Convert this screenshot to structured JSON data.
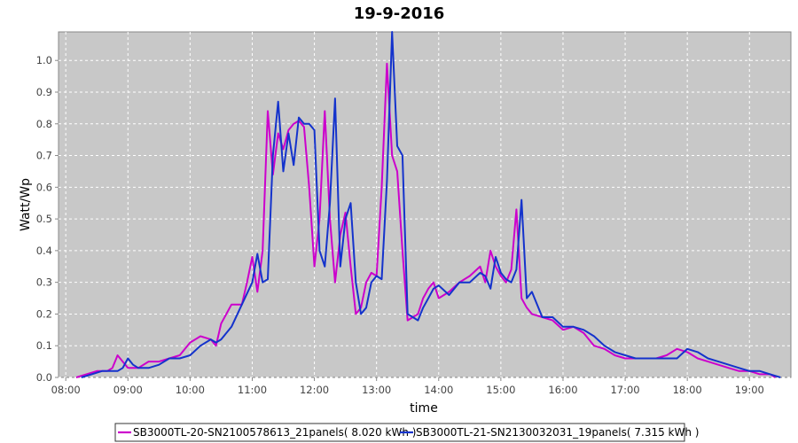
{
  "chart_data": {
    "type": "line",
    "title": "19-9-2016",
    "xlabel": "time",
    "ylabel": "Watt/Wp",
    "x_ticks": [
      "08:00",
      "09:00",
      "10:00",
      "11:00",
      "12:00",
      "13:00",
      "14:00",
      "15:00",
      "16:00",
      "17:00",
      "18:00",
      "19:00"
    ],
    "y_ticks": [
      "0.0",
      "0.1",
      "0.2",
      "0.3",
      "0.4",
      "0.5",
      "0.6",
      "0.7",
      "0.8",
      "0.9",
      "1.0"
    ],
    "xlim": [
      "07:53",
      "19:40"
    ],
    "ylim": [
      0.0,
      1.09
    ],
    "grid": true,
    "legend_position": "bottom",
    "series": [
      {
        "name": "SB3000TL-20-SN2100578613_21panels( 8.020 kWh )",
        "color": "#cc00cc",
        "x": [
          "08:10",
          "08:20",
          "08:30",
          "08:40",
          "08:45",
          "08:50",
          "08:55",
          "09:00",
          "09:05",
          "09:10",
          "09:20",
          "09:30",
          "09:40",
          "09:50",
          "10:00",
          "10:10",
          "10:20",
          "10:25",
          "10:30",
          "10:40",
          "10:50",
          "10:55",
          "11:00",
          "11:05",
          "11:10",
          "11:15",
          "11:20",
          "11:25",
          "11:30",
          "11:35",
          "11:40",
          "11:45",
          "11:50",
          "11:55",
          "12:00",
          "12:05",
          "12:10",
          "12:15",
          "12:20",
          "12:25",
          "12:30",
          "12:35",
          "12:40",
          "12:45",
          "12:50",
          "12:55",
          "13:00",
          "13:05",
          "13:10",
          "13:15",
          "13:20",
          "13:25",
          "13:30",
          "13:35",
          "13:40",
          "13:45",
          "13:50",
          "13:55",
          "14:00",
          "14:10",
          "14:20",
          "14:30",
          "14:40",
          "14:45",
          "14:50",
          "14:55",
          "15:00",
          "15:05",
          "15:10",
          "15:15",
          "15:20",
          "15:25",
          "15:30",
          "15:40",
          "15:50",
          "16:00",
          "16:10",
          "16:20",
          "16:30",
          "16:40",
          "16:50",
          "17:00",
          "17:10",
          "17:20",
          "17:30",
          "17:40",
          "17:50",
          "18:00",
          "18:10",
          "18:20",
          "18:30",
          "18:40",
          "18:50",
          "19:00",
          "19:10",
          "19:20",
          "19:25"
        ],
        "values": [
          0.0,
          0.01,
          0.02,
          0.02,
          0.03,
          0.07,
          0.05,
          0.03,
          0.03,
          0.03,
          0.05,
          0.05,
          0.06,
          0.07,
          0.11,
          0.13,
          0.12,
          0.1,
          0.17,
          0.23,
          0.23,
          0.3,
          0.38,
          0.27,
          0.4,
          0.84,
          0.64,
          0.77,
          0.72,
          0.78,
          0.8,
          0.81,
          0.79,
          0.6,
          0.35,
          0.5,
          0.84,
          0.5,
          0.3,
          0.45,
          0.52,
          0.35,
          0.2,
          0.22,
          0.3,
          0.33,
          0.32,
          0.6,
          0.99,
          0.7,
          0.65,
          0.4,
          0.18,
          0.19,
          0.2,
          0.25,
          0.28,
          0.3,
          0.25,
          0.27,
          0.3,
          0.32,
          0.35,
          0.3,
          0.4,
          0.35,
          0.32,
          0.3,
          0.34,
          0.53,
          0.25,
          0.22,
          0.2,
          0.19,
          0.18,
          0.15,
          0.16,
          0.14,
          0.1,
          0.09,
          0.07,
          0.06,
          0.06,
          0.06,
          0.06,
          0.07,
          0.09,
          0.08,
          0.06,
          0.05,
          0.04,
          0.03,
          0.02,
          0.02,
          0.01,
          0.01,
          0.0
        ]
      },
      {
        "name": "SB3000TL-21-SN2130032031_19panels( 7.315 kWh )",
        "color": "#1433cc",
        "x": [
          "08:15",
          "08:25",
          "08:35",
          "08:45",
          "08:50",
          "08:55",
          "09:00",
          "09:05",
          "09:10",
          "09:20",
          "09:30",
          "09:40",
          "09:50",
          "10:00",
          "10:10",
          "10:20",
          "10:25",
          "10:30",
          "10:40",
          "10:50",
          "11:00",
          "11:05",
          "11:10",
          "11:15",
          "11:20",
          "11:25",
          "11:30",
          "11:35",
          "11:40",
          "11:45",
          "11:50",
          "11:55",
          "12:00",
          "12:05",
          "12:10",
          "12:15",
          "12:20",
          "12:25",
          "12:30",
          "12:35",
          "12:40",
          "12:45",
          "12:50",
          "12:55",
          "13:00",
          "13:05",
          "13:10",
          "13:15",
          "13:20",
          "13:25",
          "13:30",
          "13:35",
          "13:40",
          "13:45",
          "13:50",
          "13:55",
          "14:00",
          "14:10",
          "14:20",
          "14:30",
          "14:40",
          "14:45",
          "14:50",
          "14:55",
          "15:00",
          "15:05",
          "15:10",
          "15:15",
          "15:20",
          "15:25",
          "15:30",
          "15:40",
          "15:50",
          "16:00",
          "16:10",
          "16:20",
          "16:30",
          "16:40",
          "16:50",
          "17:00",
          "17:10",
          "17:20",
          "17:30",
          "17:40",
          "17:50",
          "18:00",
          "18:10",
          "18:20",
          "18:30",
          "18:40",
          "18:50",
          "19:00",
          "19:10",
          "19:20",
          "19:30"
        ],
        "values": [
          0.0,
          0.01,
          0.02,
          0.02,
          0.02,
          0.03,
          0.06,
          0.04,
          0.03,
          0.03,
          0.04,
          0.06,
          0.06,
          0.07,
          0.1,
          0.12,
          0.11,
          0.12,
          0.16,
          0.23,
          0.3,
          0.39,
          0.3,
          0.31,
          0.7,
          0.87,
          0.65,
          0.77,
          0.67,
          0.82,
          0.8,
          0.8,
          0.78,
          0.4,
          0.35,
          0.55,
          0.88,
          0.35,
          0.5,
          0.55,
          0.3,
          0.2,
          0.22,
          0.3,
          0.32,
          0.31,
          0.62,
          1.09,
          0.73,
          0.7,
          0.2,
          0.19,
          0.18,
          0.22,
          0.25,
          0.28,
          0.29,
          0.26,
          0.3,
          0.3,
          0.33,
          0.32,
          0.28,
          0.38,
          0.33,
          0.31,
          0.3,
          0.34,
          0.56,
          0.25,
          0.27,
          0.19,
          0.19,
          0.16,
          0.16,
          0.15,
          0.13,
          0.1,
          0.08,
          0.07,
          0.06,
          0.06,
          0.06,
          0.06,
          0.06,
          0.09,
          0.08,
          0.06,
          0.05,
          0.04,
          0.03,
          0.02,
          0.02,
          0.01,
          0.0
        ]
      }
    ]
  }
}
